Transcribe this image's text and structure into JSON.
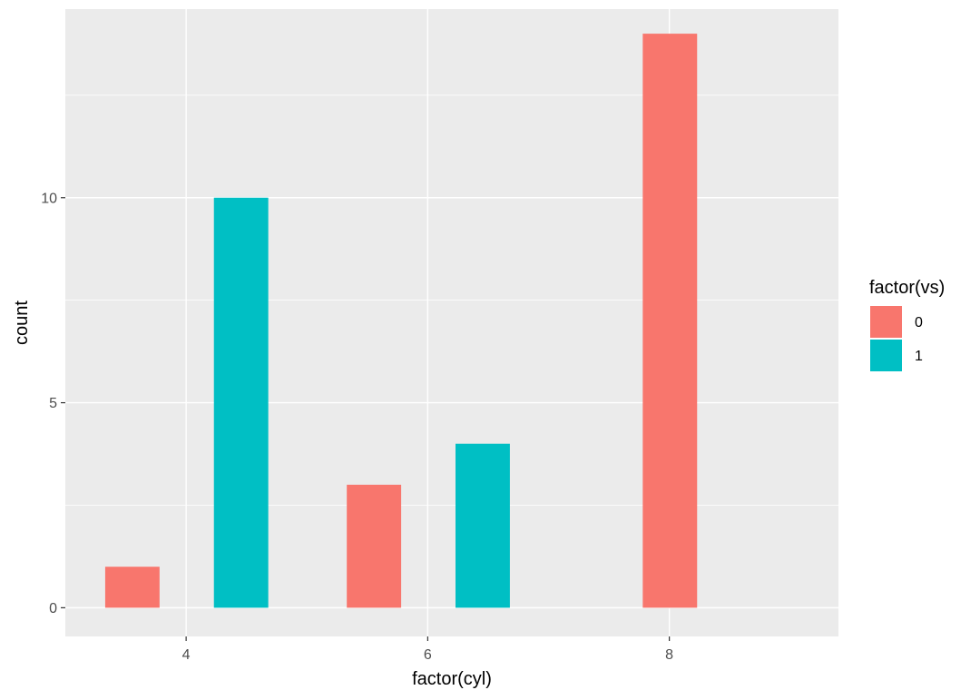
{
  "chart_data": {
    "type": "bar",
    "position": "dodge",
    "xlabel": "factor(cyl)",
    "ylabel": "count",
    "x": [
      4,
      6,
      8
    ],
    "x_ticks": [
      "4",
      "6",
      "8"
    ],
    "xlim": [
      3,
      9.4
    ],
    "ylim": [
      -0.7,
      14.6
    ],
    "y_ticks": [
      0,
      5,
      10
    ],
    "y_tick_labels": [
      "0",
      "5",
      "10"
    ],
    "y_minor_ticks": [
      2.5,
      7.5,
      12.5
    ],
    "grid": true,
    "legend": {
      "title": "factor(vs)",
      "placement": "right",
      "entries": [
        {
          "label": "0",
          "color": "#F8766D"
        },
        {
          "label": "1",
          "color": "#00BFC4"
        }
      ]
    },
    "bars": [
      {
        "cyl": 4,
        "vs": "0",
        "count": 1,
        "x_start": 3.33,
        "x_end": 3.78
      },
      {
        "cyl": 4,
        "vs": "1",
        "count": 10,
        "x_start": 4.23,
        "x_end": 4.68
      },
      {
        "cyl": 6,
        "vs": "0",
        "count": 3,
        "x_start": 5.33,
        "x_end": 5.78
      },
      {
        "cyl": 6,
        "vs": "1",
        "count": 4,
        "x_start": 6.23,
        "x_end": 6.68
      },
      {
        "cyl": 8,
        "vs": "0",
        "count": 14,
        "x_start": 7.78,
        "x_end": 8.23
      }
    ],
    "colors": {
      "panel_background": "#EBEBEB",
      "grid": "#FFFFFF",
      "vs0": "#F8766D",
      "vs1": "#00BFC4"
    }
  }
}
